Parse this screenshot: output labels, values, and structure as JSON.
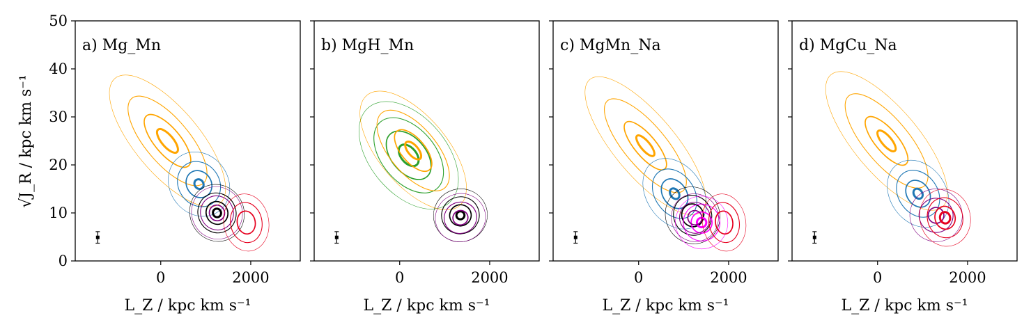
{
  "figure": {
    "ylabel": "√J_R / kpc km s⁻¹",
    "xlabel": "L_Z / kpc km s⁻¹"
  },
  "chart_data": [
    {
      "type": "contour",
      "panel_label": "a) Mg_Mn",
      "xlim": [
        -1900,
        3100
      ],
      "ylim": [
        0,
        50
      ],
      "xticks": [
        0,
        2000
      ],
      "yticks": [
        0,
        10,
        20,
        30,
        40,
        50
      ],
      "errorbar": {
        "x": -1400,
        "y": 4.9,
        "yerr": 1.2,
        "xerr": 40
      },
      "groups": [
        {
          "color": "#ffa500",
          "cx": 150,
          "cy": 25,
          "rx": 720,
          "ry": 17,
          "rot": -40,
          "levels": [
            1,
            0.68,
            0.4,
            0.18
          ]
        },
        {
          "color": "#1f77b4",
          "cx": 850,
          "cy": 16,
          "rx": 650,
          "ry": 7,
          "rot": -35,
          "levels": [
            1,
            0.7,
            0.42,
            0.15
          ]
        },
        {
          "color": "#000000",
          "cx": 1250,
          "cy": 10,
          "rx": 600,
          "ry": 6,
          "rot": -25,
          "levels": [
            1,
            0.7,
            0.4,
            0.15
          ]
        },
        {
          "color": "#800080",
          "cx": 1250,
          "cy": 10,
          "rx": 560,
          "ry": 5.5,
          "rot": -25,
          "levels": [
            1,
            0.65,
            0.3
          ]
        },
        {
          "color": "#e6001f",
          "cx": 1900,
          "cy": 8,
          "rx": 500,
          "ry": 6,
          "rot": -10,
          "levels": [
            1,
            0.7,
            0.4
          ]
        }
      ]
    },
    {
      "type": "contour",
      "panel_label": "b) MgH_Mn",
      "xlim": [
        -1900,
        3100
      ],
      "ylim": [
        0,
        50
      ],
      "xticks": [
        0,
        2000
      ],
      "yticks": [
        0,
        10,
        20,
        30,
        40,
        50
      ],
      "errorbar": {
        "x": -1400,
        "y": 4.9,
        "yerr": 1.2,
        "xerr": 40
      },
      "groups": [
        {
          "color": "#2ca02c",
          "cx": 200,
          "cy": 22,
          "rx": 850,
          "ry": 13,
          "rot": -40,
          "levels": [
            1,
            0.7,
            0.45,
            0.2
          ]
        },
        {
          "color": "#ffa500",
          "cx": 300,
          "cy": 23,
          "rx": 760,
          "ry": 15,
          "rot": -40,
          "levels": [
            1,
            0.68,
            0.35,
            0.15
          ]
        },
        {
          "color": "#000000",
          "cx": 1350,
          "cy": 9.5,
          "rx": 600,
          "ry": 5.5,
          "rot": -20,
          "levels": [
            1,
            0.7,
            0.4,
            0.15
          ]
        },
        {
          "color": "#800080",
          "cx": 1350,
          "cy": 9,
          "rx": 560,
          "ry": 5,
          "rot": -20,
          "levels": [
            1,
            0.65,
            0.3
          ]
        }
      ]
    },
    {
      "type": "contour",
      "panel_label": "c) MgMn_Na",
      "xlim": [
        -1900,
        3100
      ],
      "ylim": [
        0,
        50
      ],
      "xticks": [
        0,
        2000
      ],
      "yticks": [
        0,
        10,
        20,
        30,
        40,
        50
      ],
      "errorbar": {
        "x": -1400,
        "y": 4.9,
        "yerr": 1.2,
        "xerr": 40
      },
      "groups": [
        {
          "color": "#ffa500",
          "cx": 150,
          "cy": 24,
          "rx": 680,
          "ry": 18,
          "rot": -40,
          "levels": [
            1,
            0.68,
            0.35,
            0.15
          ]
        },
        {
          "color": "#1f77b4",
          "cx": 800,
          "cy": 14,
          "rx": 620,
          "ry": 8,
          "rot": -35,
          "levels": [
            1,
            0.7,
            0.42,
            0.15
          ]
        },
        {
          "color": "#000000",
          "cx": 1200,
          "cy": 9.5,
          "rx": 600,
          "ry": 6,
          "rot": -25,
          "levels": [
            1,
            0.7,
            0.4
          ]
        },
        {
          "color": "#ff00ff",
          "cx": 1400,
          "cy": 8,
          "rx": 580,
          "ry": 5.5,
          "rot": -20,
          "levels": [
            1,
            0.7,
            0.4,
            0.18
          ]
        },
        {
          "color": "#800080",
          "cx": 1250,
          "cy": 9,
          "rx": 520,
          "ry": 5,
          "rot": -25,
          "levels": [
            1,
            0.65,
            0.3
          ]
        },
        {
          "color": "#e6001f",
          "cx": 1900,
          "cy": 8,
          "rx": 480,
          "ry": 6,
          "rot": -10,
          "levels": [
            1,
            0.7,
            0.4
          ]
        }
      ]
    },
    {
      "type": "contour",
      "panel_label": "d) MgCu_Na",
      "xlim": [
        -1900,
        3100
      ],
      "ylim": [
        0,
        50
      ],
      "xticks": [
        0,
        2000
      ],
      "yticks": [
        0,
        10,
        20,
        30,
        40,
        50
      ],
      "errorbar": {
        "x": -1400,
        "y": 4.9,
        "yerr": 1.2,
        "xerr": 40
      },
      "groups": [
        {
          "color": "#ffa500",
          "cx": 200,
          "cy": 25,
          "rx": 720,
          "ry": 18,
          "rot": -40,
          "levels": [
            1,
            0.68,
            0.35,
            0.15
          ]
        },
        {
          "color": "#1f77b4",
          "cx": 900,
          "cy": 14,
          "rx": 620,
          "ry": 7.5,
          "rot": -35,
          "levels": [
            1,
            0.7,
            0.4,
            0.15
          ]
        },
        {
          "color": "#800080",
          "cx": 1300,
          "cy": 9.5,
          "rx": 580,
          "ry": 5.5,
          "rot": -25,
          "levels": [
            1,
            0.65,
            0.3
          ]
        },
        {
          "color": "#e6001f",
          "cx": 1500,
          "cy": 9,
          "rx": 560,
          "ry": 6,
          "rot": -15,
          "levels": [
            1,
            0.7,
            0.4,
            0.2
          ]
        }
      ]
    }
  ]
}
